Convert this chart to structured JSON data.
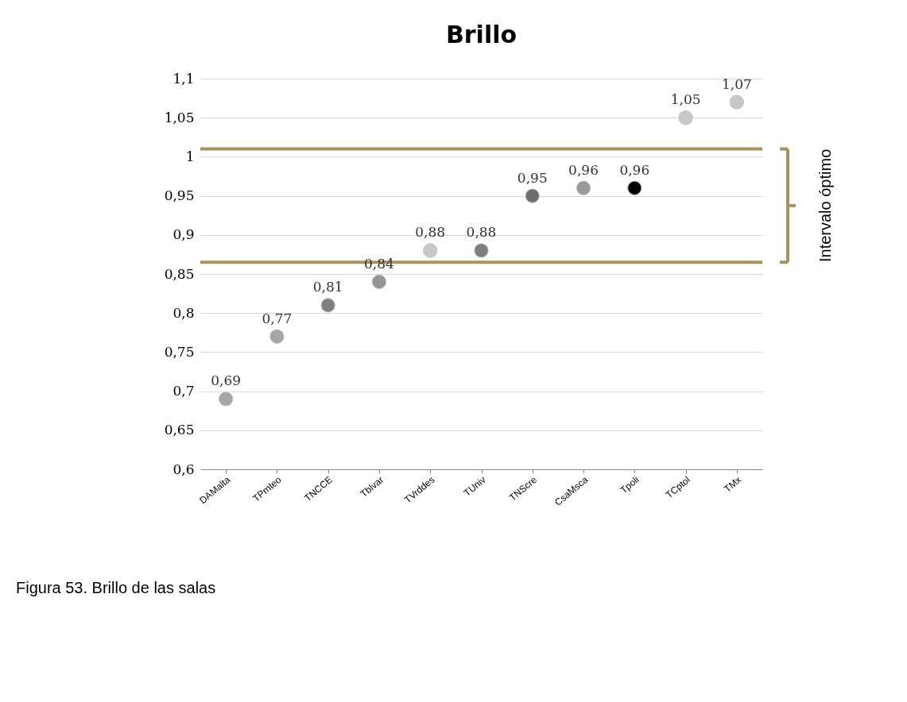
{
  "chart_data": {
    "type": "scatter",
    "title": "Brillo",
    "categories": [
      "DAMalta",
      "TPmteo",
      "TNCCE",
      "Tblvar",
      "TVrddes",
      "TUniv",
      "TNScre",
      "CsaMsca",
      "Tpoli",
      "TCptol",
      "TMx"
    ],
    "values": [
      0.69,
      0.77,
      0.81,
      0.84,
      0.88,
      0.88,
      0.95,
      0.96,
      0.96,
      1.05,
      1.07
    ],
    "colors": [
      "#a6a6a6",
      "#a6a6a6",
      "#7f7f7f",
      "#959595",
      "#c8c8c8",
      "#7f7f7f",
      "#6e6e6e",
      "#9a9a9a",
      "#000000",
      "#c8c8c8",
      "#c8c8c8"
    ],
    "ylim": [
      0.6,
      1.1
    ],
    "yticks": [
      {
        "value": 0.6,
        "label": "0,6"
      },
      {
        "value": 0.65,
        "label": "0,65"
      },
      {
        "value": 0.7,
        "label": "0,7"
      },
      {
        "value": 0.75,
        "label": "0,75"
      },
      {
        "value": 0.8,
        "label": "0,8"
      },
      {
        "value": 0.85,
        "label": "0,85"
      },
      {
        "value": 0.9,
        "label": "0,9"
      },
      {
        "value": 0.95,
        "label": "0,95"
      },
      {
        "value": 1,
        "label": "1"
      },
      {
        "value": 1.05,
        "label": "1,05"
      },
      {
        "value": 1.1,
        "label": "1,1"
      }
    ],
    "value_labels": [
      "0,69",
      "0,77",
      "0,81",
      "0,84",
      "0,88",
      "0,88",
      "0,95",
      "0,96",
      "0,96",
      "1,05",
      "1,07"
    ],
    "ref_lines": [
      {
        "axis": "y",
        "value": 0.865,
        "color": "#a8935a"
      },
      {
        "axis": "y",
        "value": 1.01,
        "color": "#a8935a"
      }
    ],
    "grid": "y",
    "marker": "circle",
    "annotations": [
      "Intervalo óptimo",
      "Figura  53. Brillo de las salas"
    ]
  }
}
